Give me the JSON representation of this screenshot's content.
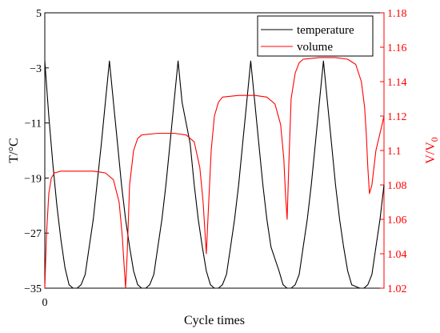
{
  "chart_data": {
    "type": "line",
    "xlabel": "Cycle times",
    "x_tick_labels": [
      "0"
    ],
    "xlim": [
      0,
      4.2
    ],
    "y_left": {
      "label_main": "T/",
      "label_unit": "°C",
      "ylim": [
        -35,
        5
      ],
      "ticks": [
        5,
        -3,
        -11,
        -19,
        -27,
        -35
      ],
      "tick_labels": [
        "5",
        "−3",
        "−11",
        "−19",
        "−27",
        "−35"
      ],
      "color": "#000000"
    },
    "y_right": {
      "label_main": "V/V",
      "label_sub": "0",
      "ylim": [
        1.02,
        1.18
      ],
      "ticks": [
        1.18,
        1.16,
        1.14,
        1.12,
        1.1,
        1.08,
        1.06,
        1.04,
        1.02
      ],
      "tick_labels": [
        "1.18",
        "1.16",
        "1.14",
        "1.12",
        "1.1",
        "1.08",
        "1.06",
        "1.04",
        "1.02"
      ],
      "color": "#ff0000"
    },
    "legend": {
      "position": "top-right",
      "entries": [
        {
          "name": "temperature",
          "color": "#000000"
        },
        {
          "name": "volume",
          "color": "#ff0000"
        }
      ]
    },
    "series": [
      {
        "name": "temperature",
        "axis": "left",
        "color": "#000000",
        "x": [
          0,
          0.05,
          0.1,
          0.15,
          0.2,
          0.25,
          0.3,
          0.35,
          0.4,
          0.45,
          0.5,
          0.55,
          0.6,
          0.7,
          0.75,
          0.8,
          0.85,
          0.9,
          0.95,
          1.0,
          1.05,
          1.1,
          1.15,
          1.2,
          1.25,
          1.3,
          1.35,
          1.4,
          1.45,
          1.5,
          1.55,
          1.6,
          1.65,
          1.7,
          1.8,
          1.85,
          1.9,
          1.95,
          2.0,
          2.05,
          2.1,
          2.15,
          2.2,
          2.25,
          2.3,
          2.35,
          2.4,
          2.45,
          2.5,
          2.55,
          2.6,
          2.65,
          2.7,
          2.75,
          2.8,
          2.9,
          2.95,
          3.0,
          3.05,
          3.1,
          3.15,
          3.2,
          3.25,
          3.3,
          3.35,
          3.4,
          3.45,
          3.5,
          3.55,
          3.6,
          3.65,
          3.7,
          3.75,
          3.8,
          3.9,
          3.95,
          4.0,
          4.05,
          4.1,
          4.15,
          4.2
        ],
        "values": [
          -2,
          -10,
          -17,
          -23,
          -28,
          -32,
          -34.5,
          -35,
          -35,
          -34.5,
          -33,
          -29,
          -25,
          -14,
          -8,
          -2,
          -8,
          -14,
          -20,
          -25,
          -29,
          -32.5,
          -34.5,
          -35,
          -35,
          -34.5,
          -33,
          -29,
          -25,
          -20,
          -14,
          -8,
          -2,
          -8,
          -14,
          -20,
          -25,
          -29,
          -32.5,
          -34.5,
          -35,
          -35,
          -34.5,
          -33,
          -29,
          -25,
          -20,
          -14,
          -8,
          -2,
          -8,
          -14,
          -20,
          -25,
          -29,
          -32.5,
          -34.5,
          -35,
          -35,
          -34.5,
          -33,
          -29,
          -25,
          -20,
          -14,
          -8,
          -2,
          -8,
          -14,
          -20,
          -25,
          -29,
          -32.5,
          -34.5,
          -35,
          -35,
          -34.5,
          -33,
          -29,
          -25,
          -20
        ]
      },
      {
        "name": "volume",
        "axis": "right",
        "color": "#ff0000",
        "x": [
          0,
          0.02,
          0.05,
          0.08,
          0.12,
          0.2,
          0.4,
          0.6,
          0.75,
          0.85,
          0.92,
          0.96,
          0.98,
          1.0,
          1.02,
          1.05,
          1.1,
          1.15,
          1.2,
          1.4,
          1.6,
          1.75,
          1.85,
          1.92,
          1.96,
          1.98,
          2.0,
          2.03,
          2.06,
          2.1,
          2.15,
          2.2,
          2.4,
          2.6,
          2.75,
          2.85,
          2.92,
          2.96,
          2.98,
          3.0,
          3.02,
          3.05,
          3.1,
          3.15,
          3.2,
          3.4,
          3.6,
          3.75,
          3.85,
          3.92,
          3.96,
          3.98,
          4.0,
          4.02,
          4.05,
          4.1,
          4.15,
          4.2
        ],
        "values": [
          1.02,
          1.05,
          1.075,
          1.084,
          1.087,
          1.088,
          1.088,
          1.088,
          1.087,
          1.083,
          1.07,
          1.05,
          1.035,
          1.02,
          1.04,
          1.08,
          1.1,
          1.107,
          1.109,
          1.11,
          1.11,
          1.109,
          1.105,
          1.09,
          1.07,
          1.055,
          1.04,
          1.07,
          1.1,
          1.12,
          1.128,
          1.131,
          1.132,
          1.132,
          1.131,
          1.127,
          1.115,
          1.095,
          1.075,
          1.06,
          1.09,
          1.13,
          1.145,
          1.151,
          1.153,
          1.154,
          1.154,
          1.153,
          1.15,
          1.14,
          1.125,
          1.11,
          1.09,
          1.075,
          1.08,
          1.1,
          1.11,
          1.12
        ]
      }
    ]
  }
}
